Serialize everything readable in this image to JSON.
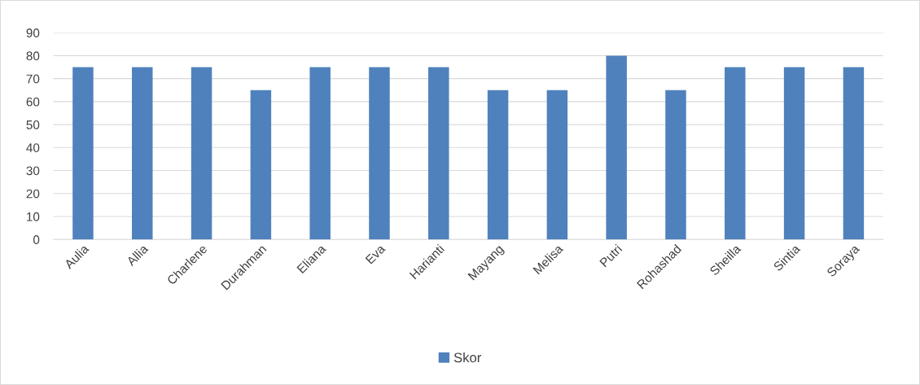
{
  "chart_data": {
    "type": "bar",
    "categories": [
      "Aulia",
      "Allia",
      "Charlene",
      "Durahman",
      "Eliana",
      "Eva",
      "Harianti",
      "Mayang",
      "Melisa",
      "Putri",
      "Rohashad",
      "Sheilla",
      "Sintia",
      "Soraya"
    ],
    "series": [
      {
        "name": "Skor",
        "color": "#4f81bd",
        "values": [
          75,
          75,
          75,
          65,
          75,
          75,
          75,
          65,
          65,
          80,
          65,
          75,
          75,
          75
        ]
      }
    ],
    "ylim": [
      0,
      90
    ],
    "yticks": [
      0,
      10,
      20,
      30,
      40,
      50,
      60,
      70,
      80,
      90
    ],
    "grid": "y",
    "legend": "bottom"
  }
}
